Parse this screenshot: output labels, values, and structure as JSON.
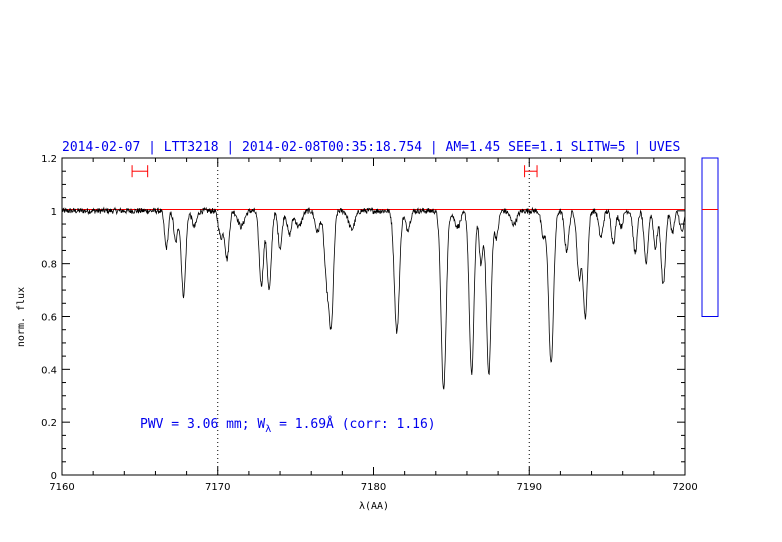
{
  "chart_data": {
    "type": "line",
    "title": "2014-02-07 | LTT3218 | 2014-02-08T00:35:18.754 | AM=1.45  SEE=1.1  SLITW=5 | UVES",
    "xlabel": "λ(AA)",
    "ylabel": "norm. flux",
    "xlim": [
      7160,
      7200
    ],
    "ylim": [
      0,
      1.2
    ],
    "x_ticks": [
      "7160",
      "7170",
      "7180",
      "7190",
      "7200"
    ],
    "y_ticks": [
      "0",
      "0.2",
      "0.4",
      "0.6",
      "0.8",
      "1",
      "1.2"
    ],
    "continuum_level": 1.005,
    "vertical_markers": [
      7170,
      7190
    ],
    "continuum_windows": [
      {
        "x0": 7164.5,
        "x1": 7165.5,
        "y": 1.15
      },
      {
        "x0": 7189.7,
        "x1": 7190.5,
        "y": 1.15
      }
    ],
    "absorption_lines": [
      {
        "x": 7166.7,
        "depth": 0.14,
        "width": 0.12
      },
      {
        "x": 7167.3,
        "depth": 0.12,
        "width": 0.12
      },
      {
        "x": 7167.8,
        "depth": 0.32,
        "width": 0.14
      },
      {
        "x": 7168.5,
        "depth": 0.06,
        "width": 0.15
      },
      {
        "x": 7170.2,
        "depth": 0.1,
        "width": 0.15
      },
      {
        "x": 7170.6,
        "depth": 0.18,
        "width": 0.13
      },
      {
        "x": 7171.5,
        "depth": 0.06,
        "width": 0.2
      },
      {
        "x": 7172.8,
        "depth": 0.28,
        "width": 0.14
      },
      {
        "x": 7173.3,
        "depth": 0.3,
        "width": 0.14
      },
      {
        "x": 7174.0,
        "depth": 0.14,
        "width": 0.13
      },
      {
        "x": 7174.6,
        "depth": 0.09,
        "width": 0.14
      },
      {
        "x": 7175.2,
        "depth": 0.06,
        "width": 0.2
      },
      {
        "x": 7176.4,
        "depth": 0.08,
        "width": 0.15
      },
      {
        "x": 7177.0,
        "depth": 0.26,
        "width": 0.16
      },
      {
        "x": 7177.3,
        "depth": 0.4,
        "width": 0.14
      },
      {
        "x": 7178.6,
        "depth": 0.07,
        "width": 0.2
      },
      {
        "x": 7181.5,
        "depth": 0.46,
        "width": 0.16
      },
      {
        "x": 7182.2,
        "depth": 0.07,
        "width": 0.15
      },
      {
        "x": 7184.5,
        "depth": 0.68,
        "width": 0.16
      },
      {
        "x": 7185.4,
        "depth": 0.06,
        "width": 0.2
      },
      {
        "x": 7186.3,
        "depth": 0.62,
        "width": 0.15
      },
      {
        "x": 7186.9,
        "depth": 0.2,
        "width": 0.12
      },
      {
        "x": 7187.4,
        "depth": 0.62,
        "width": 0.15
      },
      {
        "x": 7187.9,
        "depth": 0.1,
        "width": 0.12
      },
      {
        "x": 7189.0,
        "depth": 0.05,
        "width": 0.2
      },
      {
        "x": 7190.9,
        "depth": 0.1,
        "width": 0.13
      },
      {
        "x": 7191.4,
        "depth": 0.58,
        "width": 0.16
      },
      {
        "x": 7192.4,
        "depth": 0.15,
        "width": 0.14
      },
      {
        "x": 7193.2,
        "depth": 0.25,
        "width": 0.14
      },
      {
        "x": 7193.6,
        "depth": 0.4,
        "width": 0.14
      },
      {
        "x": 7194.6,
        "depth": 0.1,
        "width": 0.14
      },
      {
        "x": 7195.4,
        "depth": 0.12,
        "width": 0.13
      },
      {
        "x": 7195.9,
        "depth": 0.06,
        "width": 0.12
      },
      {
        "x": 7196.8,
        "depth": 0.16,
        "width": 0.13
      },
      {
        "x": 7197.5,
        "depth": 0.2,
        "width": 0.13
      },
      {
        "x": 7198.1,
        "depth": 0.14,
        "width": 0.12
      },
      {
        "x": 7198.6,
        "depth": 0.28,
        "width": 0.14
      },
      {
        "x": 7199.2,
        "depth": 0.08,
        "width": 0.12
      },
      {
        "x": 7199.8,
        "depth": 0.08,
        "width": 0.13
      }
    ],
    "side_panel": {
      "ymin": 0.6,
      "ymax": 1.2,
      "marker": 1.005
    },
    "colors": {
      "spectrum": "#000000",
      "continuum": "#ff0000",
      "windows": "#ff0000",
      "text": "#0000ee",
      "side_panel": "#0000ee",
      "axes": "#000000"
    }
  },
  "annotation": {
    "text_prefix": "PWV = 3.06 mm; W",
    "subscript": "λ",
    "text_suffix": " = 1.69Å (corr: 1.16)"
  }
}
